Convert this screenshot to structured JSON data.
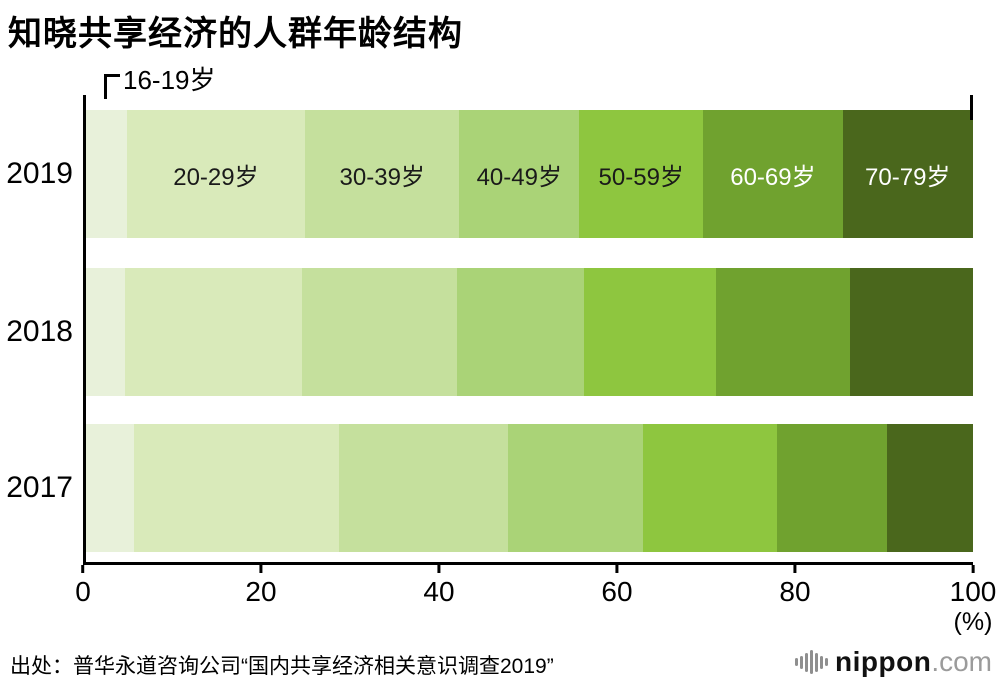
{
  "title": "知晓共享经济的人群年龄结构",
  "chart_data": {
    "type": "bar",
    "orientation": "horizontal-stacked",
    "title": "知晓共享经济的人群年龄结构",
    "categories": [
      "2019",
      "2018",
      "2017"
    ],
    "segments": [
      "16-19岁",
      "20-29岁",
      "30-39岁",
      "40-49岁",
      "50-59岁",
      "60-69岁",
      "70-79岁"
    ],
    "segment_colors": [
      "#e8f1da",
      "#d9eaba",
      "#c5e09d",
      "#aad377",
      "#8ec63f",
      "#70a22f",
      "#4a671c"
    ],
    "label_colors": [
      "#1a1a1a",
      "#1a1a1a",
      "#1a1a1a",
      "#1a1a1a",
      "#1a1a1a",
      "#ffffff",
      "#ffffff"
    ],
    "series": [
      {
        "name": "2019",
        "values": [
          4.6,
          20.1,
          17.4,
          13.5,
          14.0,
          15.7,
          14.7
        ]
      },
      {
        "name": "2018",
        "values": [
          4.4,
          20.0,
          17.4,
          14.3,
          14.9,
          15.1,
          13.9
        ]
      },
      {
        "name": "2017",
        "values": [
          5.4,
          23.1,
          19.1,
          15.2,
          15.1,
          12.4,
          9.7
        ]
      }
    ],
    "x_ticks": [
      0,
      20,
      40,
      60,
      80,
      100
    ],
    "xlim": [
      0,
      100
    ],
    "x_unit": "(%)",
    "callout_label": "16-19岁",
    "legend_position": "inline-top-bar",
    "grid": false
  },
  "source": "出处：普华永道咨询公司“国内共享经济相关意识调查2019”",
  "logo": {
    "brand": "nippon",
    "suffix": ".com",
    "icon": "equalizer-bars"
  }
}
